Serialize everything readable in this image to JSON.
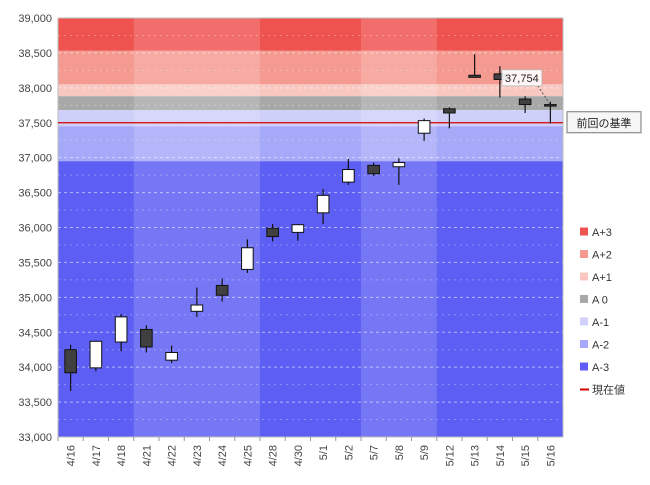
{
  "chart_data": {
    "type": "candlestick",
    "title": "",
    "xlabel": "",
    "ylabel": "",
    "ylim": [
      33000,
      39000
    ],
    "y_ticks": [
      33000,
      33500,
      34000,
      34500,
      35000,
      35500,
      36000,
      36500,
      37000,
      37500,
      38000,
      38500,
      39000
    ],
    "y_tick_labels": [
      "33,000",
      "33,500",
      "34,000",
      "34,500",
      "35,000",
      "35,500",
      "36,000",
      "36,500",
      "37,000",
      "37,500",
      "38,000",
      "38,500",
      "39,000"
    ],
    "categories": [
      "4/16",
      "4/17",
      "4/18",
      "4/21",
      "4/22",
      "4/23",
      "4/24",
      "4/25",
      "4/28",
      "4/30",
      "5/1",
      "5/2",
      "5/7",
      "5/8",
      "5/9",
      "5/12",
      "5/13",
      "5/14",
      "5/15",
      "5/16"
    ],
    "candles": [
      {
        "open": 34250,
        "close": 33920,
        "high": 34320,
        "low": 33660
      },
      {
        "open": 33990,
        "close": 34370,
        "high": 34380,
        "low": 33940
      },
      {
        "open": 34360,
        "close": 34720,
        "high": 34760,
        "low": 34230
      },
      {
        "open": 34540,
        "close": 34290,
        "high": 34600,
        "low": 34210
      },
      {
        "open": 34100,
        "close": 34210,
        "high": 34310,
        "low": 34060
      },
      {
        "open": 34800,
        "close": 34890,
        "high": 35140,
        "low": 34720
      },
      {
        "open": 35170,
        "close": 35030,
        "high": 35270,
        "low": 34940
      },
      {
        "open": 35400,
        "close": 35710,
        "high": 35830,
        "low": 35350
      },
      {
        "open": 35990,
        "close": 35870,
        "high": 36050,
        "low": 35800
      },
      {
        "open": 35930,
        "close": 36040,
        "high": 36050,
        "low": 35810
      },
      {
        "open": 36210,
        "close": 36460,
        "high": 36550,
        "low": 36050
      },
      {
        "open": 36650,
        "close": 36830,
        "high": 36980,
        "low": 36610
      },
      {
        "open": 36890,
        "close": 36770,
        "high": 36930,
        "low": 36740
      },
      {
        "open": 36870,
        "close": 36930,
        "high": 36990,
        "low": 36610
      },
      {
        "open": 37350,
        "close": 37530,
        "high": 37560,
        "low": 37240
      },
      {
        "open": 37700,
        "close": 37640,
        "high": 37720,
        "low": 37420
      },
      {
        "open": 38180,
        "close": 38150,
        "high": 38480,
        "low": 38150
      },
      {
        "open": 38200,
        "close": 38120,
        "high": 38310,
        "low": 37860
      },
      {
        "open": 37840,
        "close": 37760,
        "high": 37880,
        "low": 37640
      },
      {
        "open": 37760,
        "close": 37740,
        "high": 37800,
        "low": 37490
      }
    ],
    "bands": [
      {
        "name": "A+3",
        "from": 38530,
        "to": 39000,
        "color": "#ef5350"
      },
      {
        "name": "A+2",
        "from": 38050,
        "to": 38530,
        "color": "#f59a90"
      },
      {
        "name": "A+1",
        "from": 37880,
        "to": 38050,
        "color": "#f8c8c0"
      },
      {
        "name": "A 0",
        "from": 37680,
        "to": 37880,
        "color": "#a8a8a8"
      },
      {
        "name": "A-1",
        "from": 37450,
        "to": 37680,
        "color": "#cfd0fa"
      },
      {
        "name": "A-2",
        "from": 36950,
        "to": 37450,
        "color": "#a6a9f8"
      },
      {
        "name": "A-3",
        "from": 33000,
        "to": 36950,
        "color": "#5c5ef4"
      }
    ],
    "reference_line": {
      "name": "現在値",
      "value": 37500,
      "color": "#d40000"
    },
    "annotations": {
      "price_label": "37,754",
      "price_value": 37754,
      "baseline_label": "前回の基準"
    },
    "legend": {
      "position": "right",
      "items": [
        {
          "label": "A+3",
          "color": "#ef5350",
          "kind": "box"
        },
        {
          "label": "A+2",
          "color": "#f59a90",
          "kind": "box"
        },
        {
          "label": "A+1",
          "color": "#f8c8c0",
          "kind": "box"
        },
        {
          "label": "A 0",
          "color": "#a8a8a8",
          "kind": "box"
        },
        {
          "label": "A-1",
          "color": "#cfd0fa",
          "kind": "box"
        },
        {
          "label": "A-2",
          "color": "#a6a9f8",
          "kind": "box"
        },
        {
          "label": "A-3",
          "color": "#5c5ef4",
          "kind": "box"
        },
        {
          "label": "現在値",
          "color": "#d40000",
          "kind": "line"
        }
      ]
    },
    "grid": true,
    "up_color": "#ffffff",
    "down_color": "#404040"
  }
}
